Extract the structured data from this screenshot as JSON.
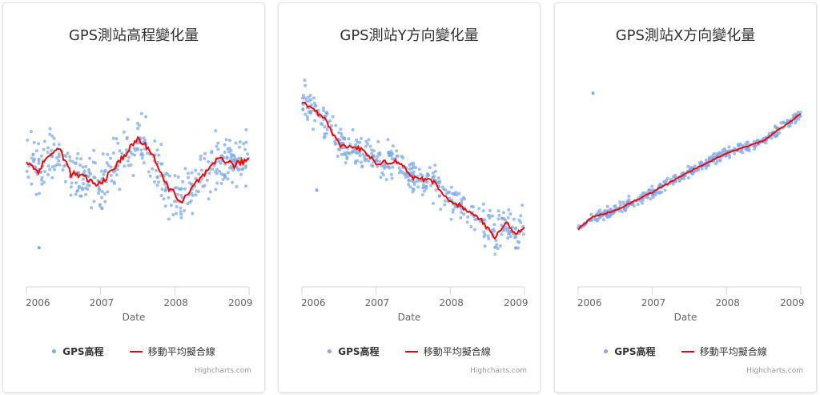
{
  "legend": {
    "scatter": "GPS高程",
    "line": "移動平均擬合線"
  },
  "credit": "Highcharts.com",
  "colors": {
    "scatter": "#7cabe8",
    "line": "#ff0000"
  },
  "chart_data": [
    {
      "type": "scatter",
      "title": "GPS測站高程變化量",
      "xlabel": "Date",
      "xticks": [
        "2006",
        "2007",
        "2008",
        "2009"
      ],
      "xlim": [
        2006,
        2009
      ],
      "ylim": [
        0,
        100
      ],
      "spread": 12,
      "trend": [
        [
          2006.0,
          61
        ],
        [
          2006.15,
          56
        ],
        [
          2006.3,
          64
        ],
        [
          2006.45,
          67
        ],
        [
          2006.6,
          55
        ],
        [
          2006.8,
          53
        ],
        [
          2006.95,
          49
        ],
        [
          2007.1,
          54
        ],
        [
          2007.3,
          63
        ],
        [
          2007.5,
          72
        ],
        [
          2007.7,
          65
        ],
        [
          2007.85,
          51
        ],
        [
          2008.1,
          41
        ],
        [
          2008.3,
          51
        ],
        [
          2008.5,
          58
        ],
        [
          2008.6,
          63
        ],
        [
          2008.8,
          59
        ],
        [
          2009.0,
          62
        ]
      ],
      "outliers": [
        [
          2006.17,
          19
        ]
      ]
    },
    {
      "type": "scatter",
      "title": "GPS測站Y方向變化量",
      "xlabel": "Date",
      "xticks": [
        "2006",
        "2007",
        "2008",
        "2009"
      ],
      "xlim": [
        2006,
        2009
      ],
      "ylim": [
        0,
        100
      ],
      "spread": 8,
      "trend": [
        [
          2006.0,
          90
        ],
        [
          2006.3,
          82
        ],
        [
          2006.5,
          69
        ],
        [
          2006.8,
          67
        ],
        [
          2007.0,
          60
        ],
        [
          2007.3,
          61
        ],
        [
          2007.5,
          53
        ],
        [
          2007.8,
          51
        ],
        [
          2007.9,
          44
        ],
        [
          2008.2,
          38
        ],
        [
          2008.4,
          33
        ],
        [
          2008.6,
          24
        ],
        [
          2008.75,
          32
        ],
        [
          2008.85,
          26
        ],
        [
          2009.0,
          28
        ]
      ],
      "outliers": [
        [
          2006.2,
          47
        ]
      ]
    },
    {
      "type": "scatter",
      "title": "GPS測站X方向變化量",
      "xlabel": "Date",
      "xticks": [
        "2006",
        "2007",
        "2008",
        "2009"
      ],
      "xlim": [
        2006,
        2009
      ],
      "ylim": [
        0,
        100
      ],
      "spread": 2.5,
      "trend": [
        [
          2006.0,
          28
        ],
        [
          2006.2,
          34
        ],
        [
          2006.5,
          37
        ],
        [
          2007.0,
          46
        ],
        [
          2007.5,
          56
        ],
        [
          2008.0,
          65
        ],
        [
          2008.5,
          71
        ],
        [
          2009.0,
          84
        ]
      ],
      "outliers": [
        [
          2006.2,
          94
        ]
      ]
    }
  ]
}
